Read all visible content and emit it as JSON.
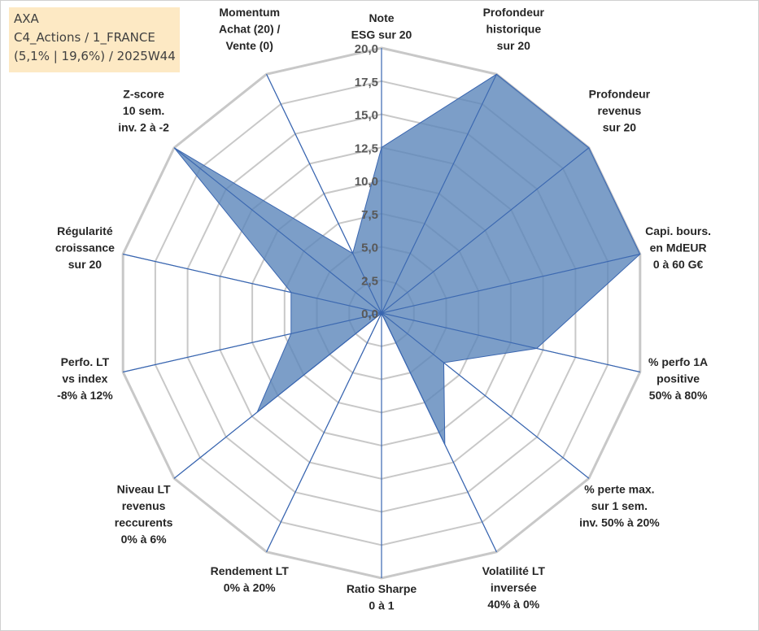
{
  "info_box": {
    "line1": "AXA",
    "line2": "C4_Actions / 1_FRANCE",
    "line3": "(5,1% | 19,6%) / 2025W44"
  },
  "colors": {
    "grid": "#c8c8c8",
    "spoke": "#3a66b0",
    "fill": "#5b86ba",
    "fill_opacity": "0.8",
    "series_line": "#3a66b0"
  },
  "chart_data": {
    "type": "radar",
    "title": "",
    "range": [
      0,
      20
    ],
    "tick_step": 2.5,
    "tick_labels": [
      "0,0",
      "2,5",
      "5,0",
      "7,5",
      "10,0",
      "12,5",
      "15,0",
      "17,5",
      "20,0"
    ],
    "axes": [
      {
        "label": "Note\nESG sur 20"
      },
      {
        "label": "Profondeur\nhistorique\nsur 20"
      },
      {
        "label": "Profondeur\nrevenus\nsur 20"
      },
      {
        "label": "Capi. bours.\nen MdEUR\n0 à 60 G€"
      },
      {
        "label": "% perfo 1A\npositive\n50% à 80%"
      },
      {
        "label": "% perte max.\nsur 1 sem.\ninv. 50% à 20%"
      },
      {
        "label": "Volatilité LT\ninversée\n40% à 0%"
      },
      {
        "label": "Ratio Sharpe\n0 à 1"
      },
      {
        "label": "Rendement LT\n0% à 20%"
      },
      {
        "label": "Niveau LT\nrevenus\nreccurents\n0% à 6%"
      },
      {
        "label": "Perfo. LT\nvs index\n-8% à 12%"
      },
      {
        "label": "Régularité\ncroissance\nsur 20"
      },
      {
        "label": "Z-score\n10 sem.\ninv. 2 à -2"
      },
      {
        "label": "Momentum\nAchat (20) /\nVente (0)"
      }
    ],
    "series": [
      {
        "name": "AXA",
        "values": [
          12.5,
          20.0,
          20.0,
          20.0,
          12.0,
          6.0,
          11.0,
          0.0,
          0.0,
          12.0,
          7.0,
          7.0,
          20.0,
          5.0
        ]
      }
    ]
  }
}
